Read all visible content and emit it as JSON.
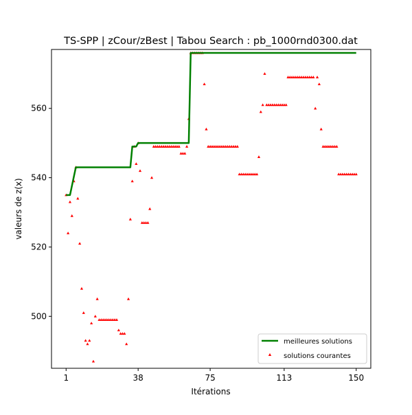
{
  "chart_data": {
    "type": "line+scatter",
    "title": "TS-SPP | zCour/zBest | Tabou Search : pb_1000rnd0300.dat",
    "xlabel": "Itérations",
    "ylabel": "valeurs de z(x)",
    "xlim": [
      -6.5,
      157.5
    ],
    "ylim": [
      485,
      577
    ],
    "xticks": [
      1,
      38,
      75,
      113,
      150
    ],
    "yticks": [
      500,
      520,
      540,
      560
    ],
    "grid": false,
    "legend_position": "bottom-right",
    "series": [
      {
        "name": "meilleures solutions",
        "kind": "line",
        "color": "#008000",
        "x": [
          1,
          3,
          6,
          34,
          35,
          37,
          38,
          64,
          65,
          150
        ],
        "y": [
          535,
          535,
          543,
          543,
          549,
          549,
          550,
          550,
          576,
          576
        ]
      },
      {
        "name": "solutions courantes",
        "kind": "scatter",
        "color": "#ff0000",
        "points": [
          [
            1,
            535
          ],
          [
            2,
            524
          ],
          [
            3,
            533
          ],
          [
            4,
            529
          ],
          [
            5,
            539
          ],
          [
            6,
            543
          ],
          [
            7,
            534
          ],
          [
            8,
            521
          ],
          [
            9,
            508
          ],
          [
            10,
            501
          ],
          [
            11,
            493
          ],
          [
            12,
            492
          ],
          [
            13,
            493
          ],
          [
            14,
            498
          ],
          [
            15,
            487
          ],
          [
            16,
            500
          ],
          [
            17,
            505
          ],
          [
            18,
            499
          ],
          [
            19,
            499
          ],
          [
            20,
            499
          ],
          [
            21,
            499
          ],
          [
            22,
            499
          ],
          [
            23,
            499
          ],
          [
            24,
            499
          ],
          [
            25,
            499
          ],
          [
            26,
            499
          ],
          [
            27,
            499
          ],
          [
            28,
            496
          ],
          [
            29,
            495
          ],
          [
            30,
            495
          ],
          [
            31,
            495
          ],
          [
            32,
            492
          ],
          [
            33,
            505
          ],
          [
            34,
            528
          ],
          [
            35,
            539
          ],
          [
            36,
            549
          ],
          [
            37,
            544
          ],
          [
            38,
            550
          ],
          [
            39,
            542
          ],
          [
            40,
            527
          ],
          [
            41,
            527
          ],
          [
            42,
            527
          ],
          [
            43,
            527
          ],
          [
            44,
            531
          ],
          [
            45,
            540
          ],
          [
            46,
            549
          ],
          [
            47,
            549
          ],
          [
            48,
            549
          ],
          [
            49,
            549
          ],
          [
            50,
            549
          ],
          [
            51,
            549
          ],
          [
            52,
            549
          ],
          [
            53,
            549
          ],
          [
            54,
            549
          ],
          [
            55,
            549
          ],
          [
            56,
            549
          ],
          [
            57,
            549
          ],
          [
            58,
            549
          ],
          [
            59,
            549
          ],
          [
            60,
            547
          ],
          [
            61,
            547
          ],
          [
            62,
            547
          ],
          [
            63,
            549
          ],
          [
            64,
            557
          ],
          [
            65,
            576
          ],
          [
            66,
            576
          ],
          [
            67,
            576
          ],
          [
            68,
            576
          ],
          [
            69,
            576
          ],
          [
            70,
            576
          ],
          [
            71,
            576
          ],
          [
            72,
            567
          ],
          [
            73,
            554
          ],
          [
            74,
            549
          ],
          [
            75,
            549
          ],
          [
            76,
            549
          ],
          [
            77,
            549
          ],
          [
            78,
            549
          ],
          [
            79,
            549
          ],
          [
            80,
            549
          ],
          [
            81,
            549
          ],
          [
            82,
            549
          ],
          [
            83,
            549
          ],
          [
            84,
            549
          ],
          [
            85,
            549
          ],
          [
            86,
            549
          ],
          [
            87,
            549
          ],
          [
            88,
            549
          ],
          [
            89,
            549
          ],
          [
            90,
            541
          ],
          [
            91,
            541
          ],
          [
            92,
            541
          ],
          [
            93,
            541
          ],
          [
            94,
            541
          ],
          [
            95,
            541
          ],
          [
            96,
            541
          ],
          [
            97,
            541
          ],
          [
            98,
            541
          ],
          [
            99,
            541
          ],
          [
            100,
            546
          ],
          [
            101,
            559
          ],
          [
            102,
            561
          ],
          [
            103,
            570
          ],
          [
            104,
            561
          ],
          [
            105,
            561
          ],
          [
            106,
            561
          ],
          [
            107,
            561
          ],
          [
            108,
            561
          ],
          [
            109,
            561
          ],
          [
            110,
            561
          ],
          [
            111,
            561
          ],
          [
            112,
            561
          ],
          [
            113,
            561
          ],
          [
            114,
            561
          ],
          [
            115,
            569
          ],
          [
            116,
            569
          ],
          [
            117,
            569
          ],
          [
            118,
            569
          ],
          [
            119,
            569
          ],
          [
            120,
            569
          ],
          [
            121,
            569
          ],
          [
            122,
            569
          ],
          [
            123,
            569
          ],
          [
            124,
            569
          ],
          [
            125,
            569
          ],
          [
            126,
            569
          ],
          [
            127,
            569
          ],
          [
            128,
            569
          ],
          [
            129,
            560
          ],
          [
            130,
            569
          ],
          [
            131,
            567
          ],
          [
            132,
            554
          ],
          [
            133,
            549
          ],
          [
            134,
            549
          ],
          [
            135,
            549
          ],
          [
            136,
            549
          ],
          [
            137,
            549
          ],
          [
            138,
            549
          ],
          [
            139,
            549
          ],
          [
            140,
            549
          ],
          [
            141,
            541
          ],
          [
            142,
            541
          ],
          [
            143,
            541
          ],
          [
            144,
            541
          ],
          [
            145,
            541
          ],
          [
            146,
            541
          ],
          [
            147,
            541
          ],
          [
            148,
            541
          ],
          [
            149,
            541
          ],
          [
            150,
            541
          ]
        ]
      }
    ]
  }
}
